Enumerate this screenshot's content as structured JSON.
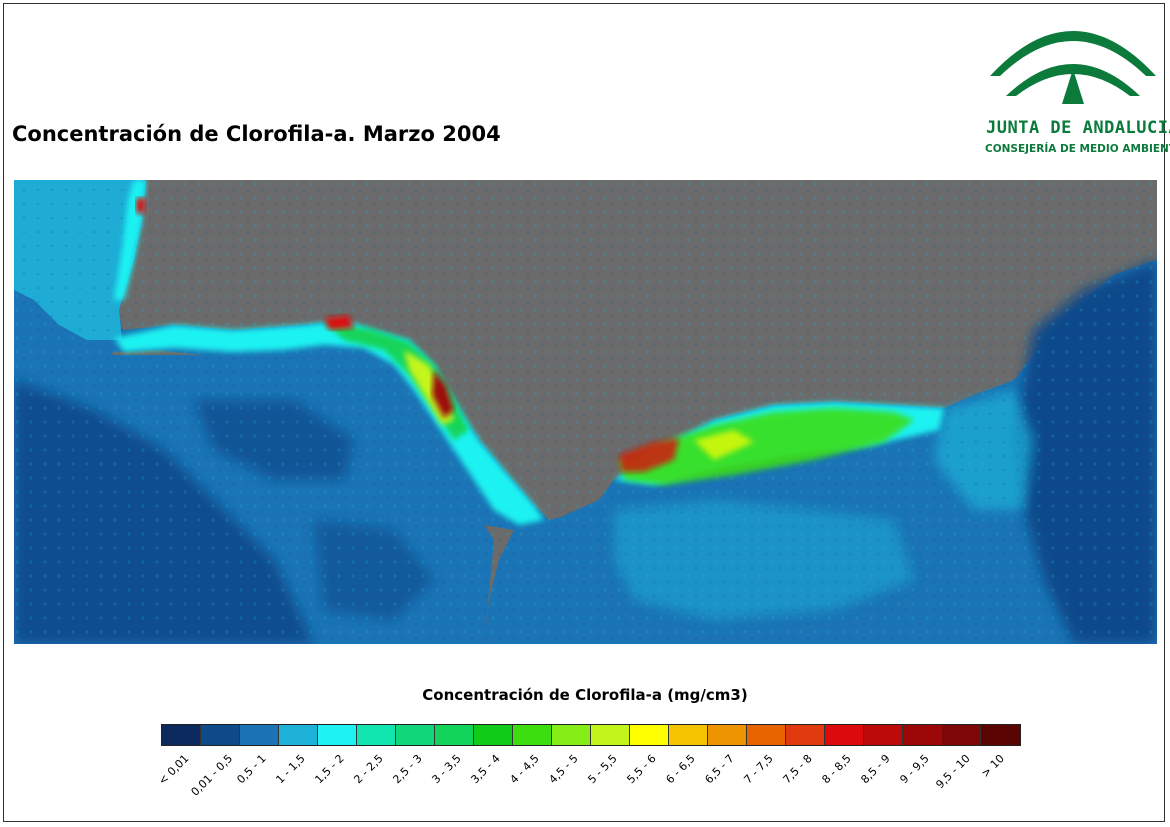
{
  "title": "Concentración de Clorofila-a. Marzo 2004",
  "logo": {
    "name": "JUNTA DE ANDALUCIA",
    "subtitle": "CONSEJERÍA DE MEDIO AMBIENTE",
    "icon": "junta-andalucia-emblem"
  },
  "map": {
    "land_color": "#6b6b6b",
    "ocean_base_color": "#2b7fbf"
  },
  "legend": {
    "title": "Concentración de Clorofila-a (mg/cm3)",
    "classes": [
      {
        "label": "< 0,01",
        "color": "#0c2a5e"
      },
      {
        "label": "0,01 - 0,5",
        "color": "#0f4a8a"
      },
      {
        "label": "0,5 - 1",
        "color": "#1a74b5"
      },
      {
        "label": "1 - 1,5",
        "color": "#1fb2d8"
      },
      {
        "label": "1,5 - 2",
        "color": "#1ff2f2"
      },
      {
        "label": "2 - 2,5",
        "color": "#12e6b0"
      },
      {
        "label": "2,5 - 3",
        "color": "#12d67a"
      },
      {
        "label": "3 - 3,5",
        "color": "#12d45a"
      },
      {
        "label": "3,5 - 4",
        "color": "#10cc18"
      },
      {
        "label": "4 - 4,5",
        "color": "#3cde10"
      },
      {
        "label": "4,5 - 5",
        "color": "#86ee16"
      },
      {
        "label": "5 - 5,5",
        "color": "#c4f51a"
      },
      {
        "label": "5,5 - 6",
        "color": "#ffff00"
      },
      {
        "label": "6 - 6,5",
        "color": "#f4c400"
      },
      {
        "label": "6,5 - 7",
        "color": "#ee9400"
      },
      {
        "label": "7 - 7,5",
        "color": "#e86400"
      },
      {
        "label": "7,5 - 8",
        "color": "#e23a10"
      },
      {
        "label": "8 - 8,5",
        "color": "#dc0a0a"
      },
      {
        "label": "8,5 - 9",
        "color": "#bc0a0a"
      },
      {
        "label": "9 - 9,5",
        "color": "#9c0808"
      },
      {
        "label": "9,5 - 10",
        "color": "#7e0606"
      },
      {
        "label": "> 10",
        "color": "#5a0404"
      }
    ]
  }
}
